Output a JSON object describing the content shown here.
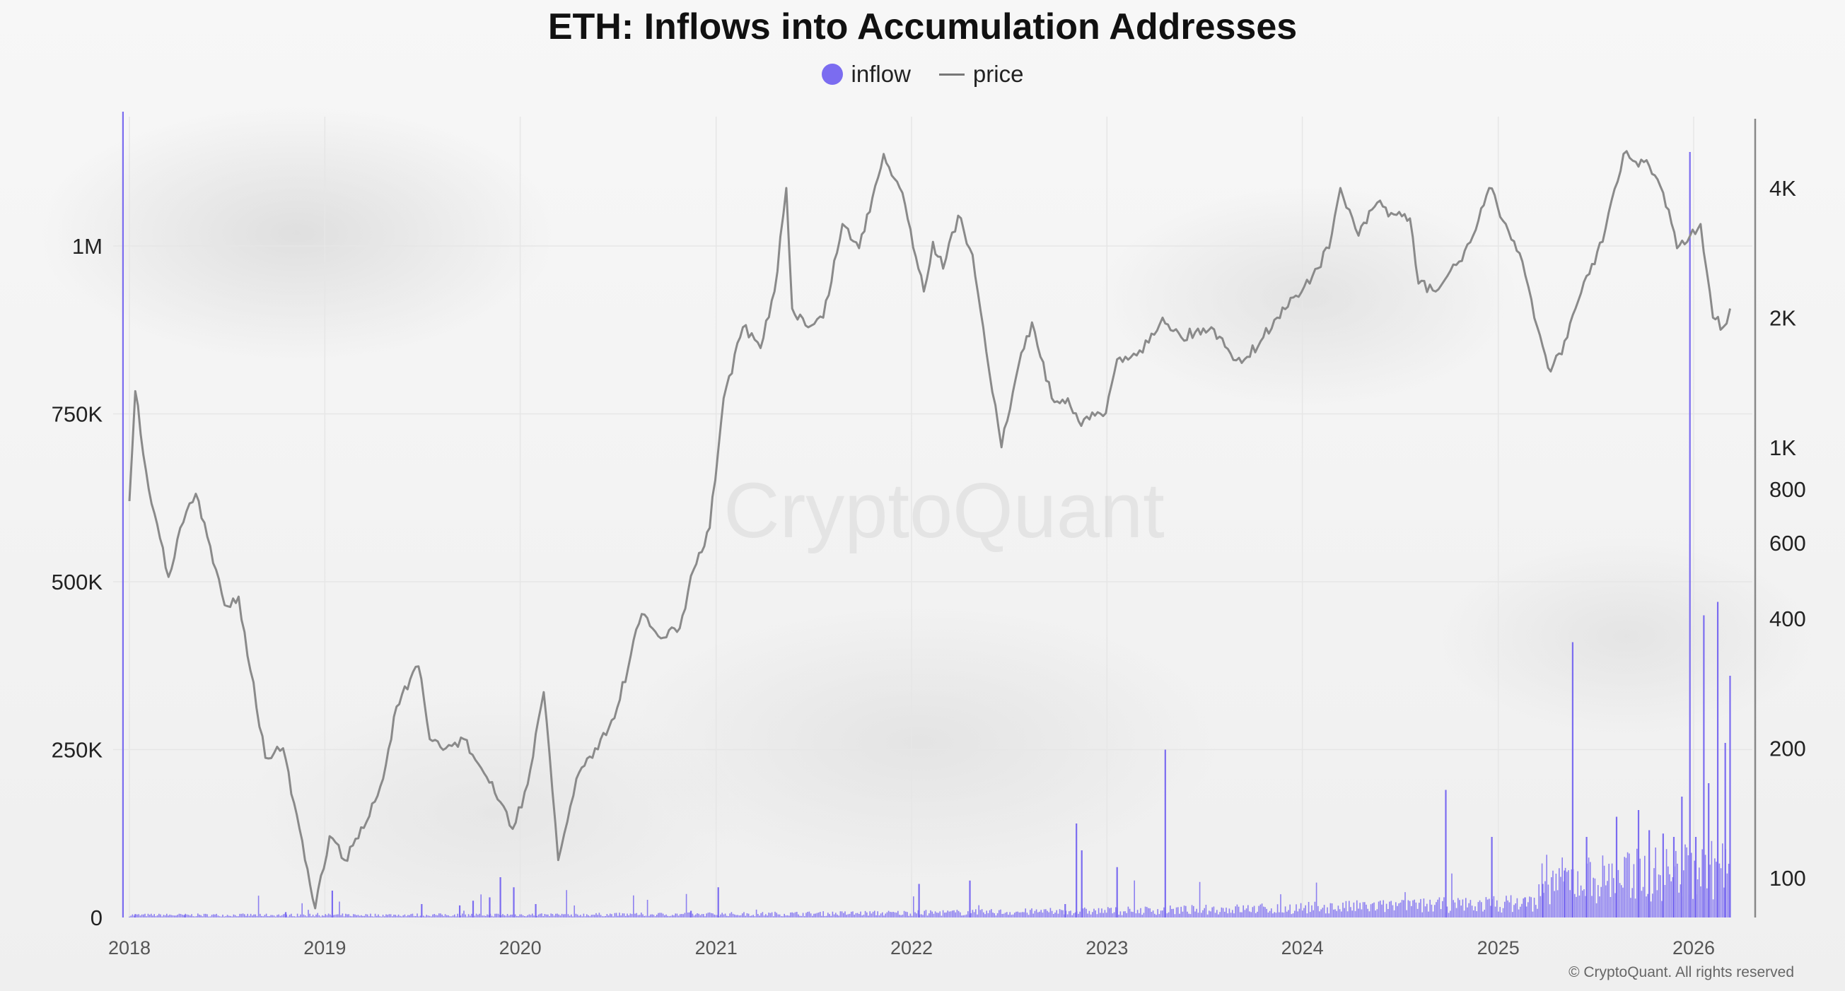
{
  "chart_data": {
    "type": "line",
    "title": "ETH: Inflows into Accumulation Addresses",
    "legend": [
      "inflow",
      "price"
    ],
    "legend_position": "top-center",
    "colors": {
      "inflow": "#7b6cf0",
      "price": "#8a8a8a"
    },
    "x_ticks": [
      "2018",
      "2019",
      "2020",
      "2021",
      "2022",
      "2023",
      "2024",
      "2025",
      "2026"
    ],
    "y_left_ticks": [
      {
        "value": 0,
        "label": "0"
      },
      {
        "value": 250000,
        "label": "250K"
      },
      {
        "value": 500000,
        "label": "500K"
      },
      {
        "value": 750000,
        "label": "750K"
      },
      {
        "value": 1000000,
        "label": "1M"
      }
    ],
    "y_right_scale": "log",
    "y_right_ticks": [
      {
        "value": 100,
        "label": "100"
      },
      {
        "value": 200,
        "label": "200"
      },
      {
        "value": 400,
        "label": "400"
      },
      {
        "value": 600,
        "label": "600"
      },
      {
        "value": 800,
        "label": "800"
      },
      {
        "value": 1000,
        "label": "1K"
      },
      {
        "value": 2000,
        "label": "2K"
      },
      {
        "value": 4000,
        "label": "4K"
      }
    ],
    "grid": true,
    "series": [
      {
        "name": "price",
        "axis": "right",
        "x": [
          "2018-01-01",
          "2018-01-12",
          "2018-02-06",
          "2018-03-15",
          "2018-04-06",
          "2018-05-05",
          "2018-06-28",
          "2018-07-24",
          "2018-09-12",
          "2018-10-15",
          "2018-11-25",
          "2018-12-14",
          "2019-01-10",
          "2019-02-07",
          "2019-03-20",
          "2019-04-20",
          "2019-05-15",
          "2019-06-25",
          "2019-07-16",
          "2019-08-15",
          "2019-09-18",
          "2019-10-20",
          "2019-11-25",
          "2019-12-18",
          "2020-01-15",
          "2020-02-14",
          "2020-03-12",
          "2020-04-15",
          "2020-05-20",
          "2020-06-25",
          "2020-08-15",
          "2020-09-20",
          "2020-10-25",
          "2020-11-20",
          "2020-12-20",
          "2021-01-15",
          "2021-02-20",
          "2021-03-25",
          "2021-04-20",
          "2021-05-12",
          "2021-05-23",
          "2021-06-22",
          "2021-07-20",
          "2021-08-25",
          "2021-09-25",
          "2021-10-20",
          "2021-11-10",
          "2021-12-15",
          "2022-01-24",
          "2022-02-10",
          "2022-03-01",
          "2022-03-29",
          "2022-04-25",
          "2022-05-15",
          "2022-06-18",
          "2022-07-20",
          "2022-08-14",
          "2022-09-20",
          "2022-10-20",
          "2022-11-09",
          "2022-12-30",
          "2023-01-20",
          "2023-02-20",
          "2023-03-20",
          "2023-04-15",
          "2023-05-20",
          "2023-06-15",
          "2023-07-15",
          "2023-08-20",
          "2023-09-15",
          "2023-10-20",
          "2023-11-15",
          "2023-12-20",
          "2024-01-20",
          "2024-02-20",
          "2024-03-12",
          "2024-04-15",
          "2024-05-20",
          "2024-06-15",
          "2024-07-20",
          "2024-08-05",
          "2024-09-06",
          "2024-10-20",
          "2024-11-20",
          "2024-12-15",
          "2025-01-15",
          "2025-02-15",
          "2025-03-15",
          "2025-04-09",
          "2025-05-10",
          "2025-06-15",
          "2025-07-15",
          "2025-08-23",
          "2025-09-15",
          "2025-10-10",
          "2025-11-05",
          "2025-12-01",
          "2025-12-20",
          "2026-01-14",
          "2026-02-06",
          "2026-02-25",
          "2026-03-10"
        ],
        "y": [
          750,
          1350,
          800,
          500,
          650,
          780,
          430,
          450,
          190,
          200,
          110,
          85,
          125,
          110,
          135,
          170,
          250,
          310,
          210,
          200,
          210,
          180,
          150,
          130,
          165,
          270,
          110,
          170,
          200,
          235,
          410,
          360,
          380,
          520,
          650,
          1300,
          1900,
          1700,
          2300,
          4000,
          2100,
          1900,
          2000,
          3300,
          2900,
          3800,
          4800,
          3900,
          2300,
          3000,
          2600,
          3450,
          2800,
          1900,
          1000,
          1550,
          1950,
          1300,
          1300,
          1150,
          1200,
          1600,
          1650,
          1750,
          2000,
          1800,
          1850,
          1900,
          1650,
          1600,
          1800,
          2000,
          2250,
          2500,
          2900,
          4000,
          3100,
          3700,
          3500,
          3400,
          2400,
          2300,
          2700,
          3200,
          4000,
          3300,
          2700,
          1900,
          1500,
          1800,
          2500,
          3000,
          4800,
          4600,
          4500,
          3900,
          2900,
          3000,
          3300,
          2000,
          1900,
          2100
        ]
      },
      {
        "name": "inflow",
        "axis": "left",
        "x": [
          "2017-12-20",
          "2018-01-12",
          "2018-04-15",
          "2018-10-20",
          "2019-01-15",
          "2019-07-01",
          "2019-09-10",
          "2019-10-05",
          "2019-11-05",
          "2019-11-25",
          "2019-12-20",
          "2020-01-30",
          "2020-11-15",
          "2021-01-05",
          "2022-01-15",
          "2022-04-20",
          "2022-10-15",
          "2022-11-05",
          "2022-11-15",
          "2023-01-20",
          "2023-04-20",
          "2024-09-25",
          "2024-12-20",
          "2025-02-20",
          "2025-03-25",
          "2025-05-05",
          "2025-05-20",
          "2025-06-15",
          "2025-08-10",
          "2025-09-20",
          "2025-10-10",
          "2025-11-05",
          "2025-11-25",
          "2025-12-10",
          "2025-12-25",
          "2026-01-05",
          "2026-01-20",
          "2026-01-29",
          "2026-02-15",
          "2026-03-01",
          "2026-03-10"
        ],
        "y": [
          1200000,
          5000,
          4000,
          8000,
          40000,
          20000,
          18000,
          25000,
          30000,
          60000,
          45000,
          20000,
          10000,
          45000,
          50000,
          55000,
          20000,
          140000,
          100000,
          75000,
          250000,
          190000,
          120000,
          30000,
          50000,
          70000,
          410000,
          120000,
          150000,
          160000,
          130000,
          125000,
          120000,
          180000,
          1140000,
          120000,
          450000,
          200000,
          470000,
          260000,
          360000
        ]
      }
    ]
  },
  "watermark": "CryptoQuant",
  "copyright": "© CryptoQuant. All rights reserved"
}
